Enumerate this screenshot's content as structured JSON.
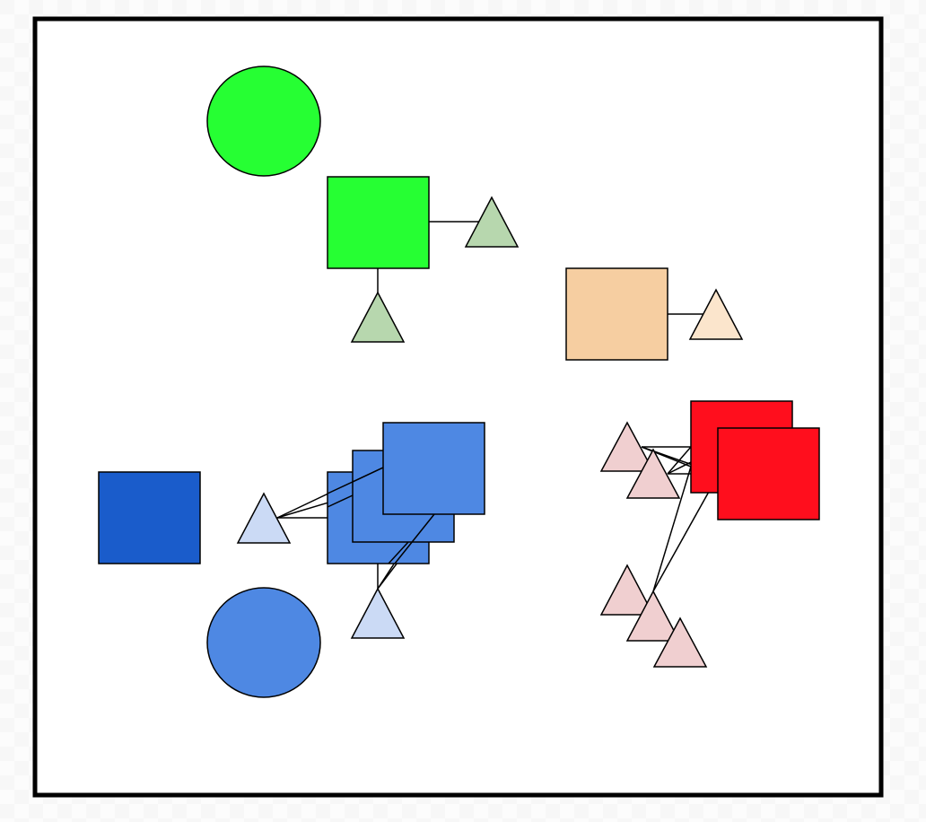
{
  "diagram": {
    "colors": {
      "frame_border": "#000000",
      "frame_fill": "#ffffff",
      "green_main": "#26ff33",
      "green_triangle": "#b7d7ae",
      "peach_main": "#f6ceA1",
      "peach_triangle": "#fbe5cc",
      "blue_dark": "#1a5ccb",
      "blue_main": "#4e88e3",
      "blue_triangle": "#cbdaf5",
      "red_main": "#ff0e1d",
      "red_triangle": "#f0cfd0",
      "connector": "#000000"
    },
    "shape_names": [
      "green-circle",
      "green-square",
      "green-triangle-right",
      "green-triangle-bottom",
      "peach-square",
      "peach-triangle",
      "dark-blue-square",
      "blue-circle",
      "blue-square-1",
      "blue-square-2",
      "blue-square-3",
      "blue-triangle-left",
      "blue-triangle-bottom",
      "red-square-1",
      "red-square-2",
      "red-triangle-1",
      "red-triangle-2",
      "red-triangle-3",
      "red-triangle-4",
      "red-triangle-5"
    ]
  }
}
